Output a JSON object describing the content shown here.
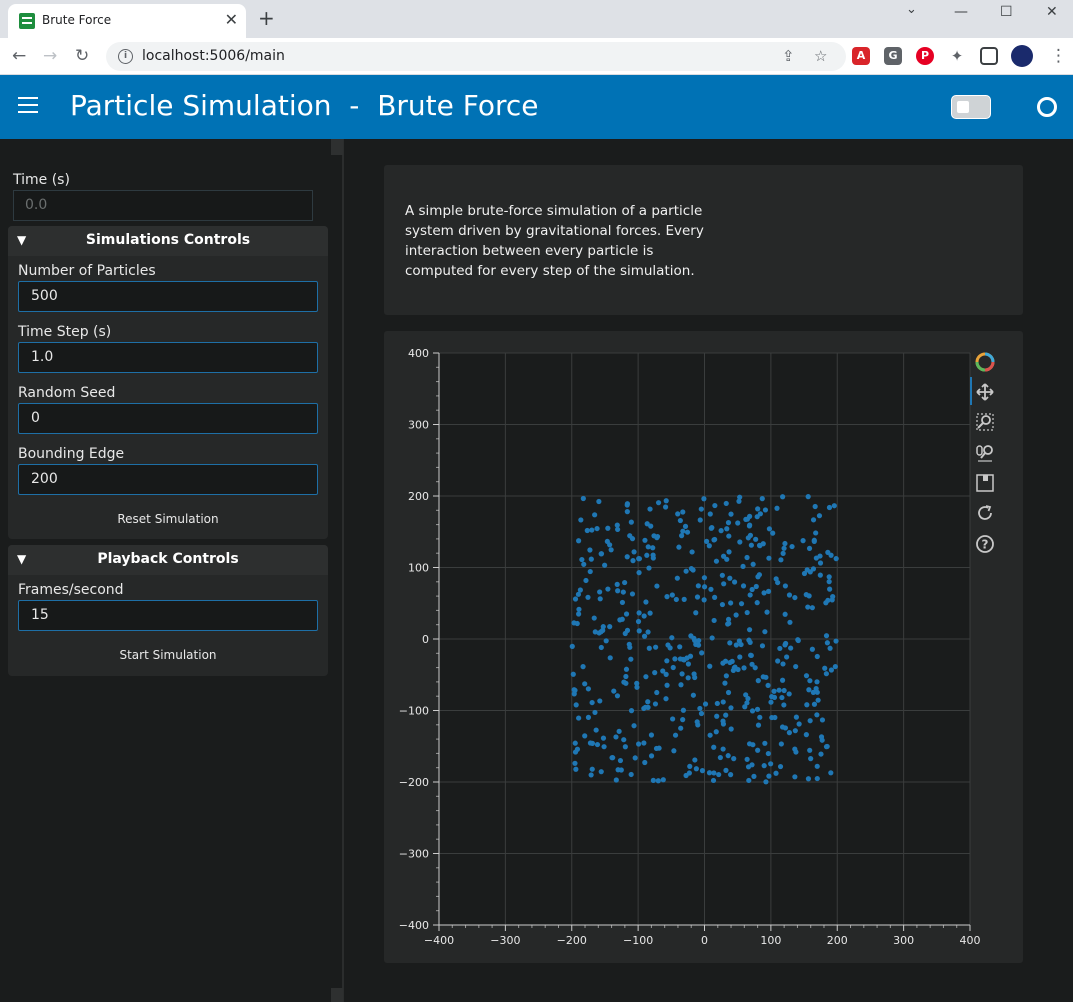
{
  "browser": {
    "tab_title": "Brute Force",
    "tab_close": "✕",
    "new_tab": "+",
    "url": "localhost:5006/main",
    "win_min": "—",
    "win_max": "☐",
    "win_close": "✕"
  },
  "header": {
    "title": "Particle Simulation  -  Brute Force"
  },
  "sidebar": {
    "time_label": "Time (s)",
    "time_value": "0.0",
    "sim_controls": {
      "title": "Simulations Controls",
      "num_particles_label": "Number of Particles",
      "num_particles_value": "500",
      "time_step_label": "Time Step (s)",
      "time_step_value": "1.0",
      "seed_label": "Random Seed",
      "seed_value": "0",
      "edge_label": "Bounding Edge",
      "edge_value": "200",
      "reset_label": "Reset Simulation"
    },
    "playback": {
      "title": "Playback Controls",
      "fps_label": "Frames/second",
      "fps_value": "15",
      "start_label": "Start Simulation"
    }
  },
  "description": "A simple brute-force simulation of a particle system driven by gravitational forces. Every interaction between every particle is computed for every step of the simulation.",
  "colors": {
    "header": "#0072b5",
    "particle": "#1f77b4",
    "background": "#1a1c1c",
    "card": "#262828"
  },
  "chart_data": {
    "type": "scatter",
    "xlim": [
      -400,
      400
    ],
    "ylim": [
      -400,
      400
    ],
    "xticks": [
      "−400",
      "−300",
      "−200",
      "−100",
      "0",
      "100",
      "200",
      "300",
      "400"
    ],
    "yticks": [
      "−400",
      "−300",
      "−200",
      "−100",
      "0",
      "100",
      "200",
      "300",
      "400"
    ],
    "grid": true,
    "point_count": 500,
    "distribution": "uniform random within [-200, 200] x [-200, 200]",
    "tools": [
      "bokeh-logo-icon",
      "pan-icon",
      "box-zoom-icon",
      "wheel-zoom-icon",
      "save-icon",
      "reset-icon",
      "help-icon"
    ]
  }
}
